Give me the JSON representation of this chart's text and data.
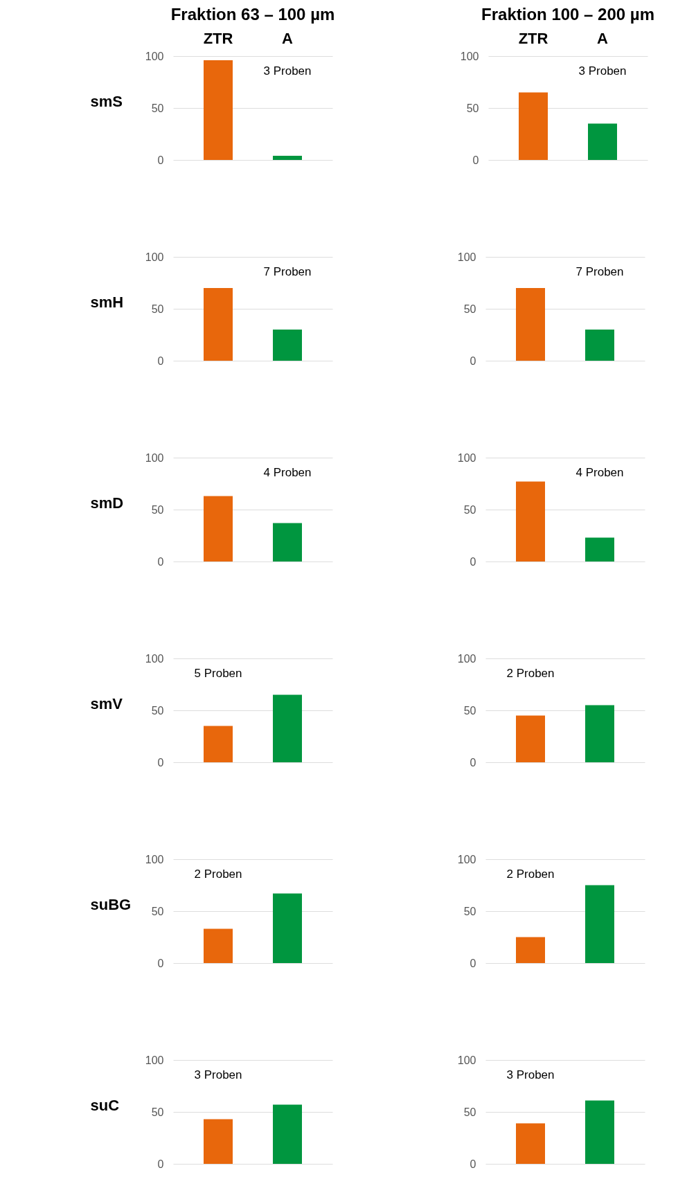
{
  "chart_data": [
    {
      "type": "bar",
      "title": "Fraktion 63 – 100 µm",
      "ylabel": "smS",
      "categories": [
        "ZTR",
        "A"
      ],
      "values": [
        96,
        4
      ],
      "colors": [
        "#e8670c",
        "#00963f"
      ],
      "ylim": [
        0,
        100
      ],
      "yticks": [
        0,
        50,
        100
      ],
      "grid": "y",
      "annotations": [
        "3 Proben"
      ]
    },
    {
      "type": "bar",
      "title": "Fraktion 100 – 200 µm",
      "categories": [
        "ZTR",
        "A"
      ],
      "values": [
        65,
        35
      ],
      "colors": [
        "#e8670c",
        "#00963f"
      ],
      "ylim": [
        0,
        100
      ],
      "yticks": [
        0,
        50,
        100
      ],
      "grid": "y",
      "annotations": [
        "3 Proben"
      ]
    },
    {
      "type": "bar",
      "ylabel": "smH",
      "categories": [
        null,
        null
      ],
      "values": [
        70,
        30
      ],
      "colors": [
        "#e8670c",
        "#00963f"
      ],
      "ylim": [
        0,
        100
      ],
      "yticks": [
        0,
        50,
        100
      ],
      "grid": "y",
      "annotations": [
        "7 Proben"
      ]
    },
    {
      "type": "bar",
      "categories": [
        null,
        null
      ],
      "values": [
        70,
        30
      ],
      "colors": [
        "#e8670c",
        "#00963f"
      ],
      "ylim": [
        0,
        100
      ],
      "yticks": [
        0,
        50,
        100
      ],
      "grid": "y",
      "annotations": [
        "7 Proben"
      ]
    },
    {
      "type": "bar",
      "ylabel": "smD",
      "categories": [
        null,
        null
      ],
      "values": [
        63,
        37
      ],
      "colors": [
        "#e8670c",
        "#00963f"
      ],
      "ylim": [
        0,
        100
      ],
      "yticks": [
        0,
        50,
        100
      ],
      "grid": "y",
      "annotations": [
        "4 Proben"
      ]
    },
    {
      "type": "bar",
      "categories": [
        null,
        null
      ],
      "values": [
        77,
        23
      ],
      "colors": [
        "#e8670c",
        "#00963f"
      ],
      "ylim": [
        0,
        100
      ],
      "yticks": [
        0,
        50,
        100
      ],
      "grid": "y",
      "annotations": [
        "4 Proben"
      ]
    },
    {
      "type": "bar",
      "ylabel": "smV",
      "categories": [
        null,
        null
      ],
      "values": [
        35,
        65
      ],
      "colors": [
        "#e8670c",
        "#00963f"
      ],
      "ylim": [
        0,
        100
      ],
      "yticks": [
        0,
        50,
        100
      ],
      "grid": "y",
      "annotations": [
        "5 Proben"
      ]
    },
    {
      "type": "bar",
      "categories": [
        null,
        null
      ],
      "values": [
        45,
        55
      ],
      "colors": [
        "#e8670c",
        "#00963f"
      ],
      "ylim": [
        0,
        100
      ],
      "yticks": [
        0,
        50,
        100
      ],
      "grid": "y",
      "annotations": [
        "2 Proben"
      ]
    },
    {
      "type": "bar",
      "ylabel": "suBG",
      "categories": [
        null,
        null
      ],
      "values": [
        33,
        67
      ],
      "colors": [
        "#e8670c",
        "#00963f"
      ],
      "ylim": [
        0,
        100
      ],
      "yticks": [
        0,
        50,
        100
      ],
      "grid": "y",
      "annotations": [
        "2 Proben"
      ]
    },
    {
      "type": "bar",
      "categories": [
        null,
        null
      ],
      "values": [
        25,
        75
      ],
      "colors": [
        "#e8670c",
        "#00963f"
      ],
      "ylim": [
        0,
        100
      ],
      "yticks": [
        0,
        50,
        100
      ],
      "grid": "y",
      "annotations": [
        "2 Proben"
      ]
    },
    {
      "type": "bar",
      "ylabel": "suC",
      "categories": [
        null,
        null
      ],
      "values": [
        43,
        57
      ],
      "colors": [
        "#e8670c",
        "#00963f"
      ],
      "ylim": [
        0,
        100
      ],
      "yticks": [
        0,
        50,
        100
      ],
      "grid": "y",
      "annotations": [
        "3 Proben"
      ]
    },
    {
      "type": "bar",
      "categories": [
        null,
        null
      ],
      "values": [
        39,
        61
      ],
      "colors": [
        "#e8670c",
        "#00963f"
      ],
      "ylim": [
        0,
        100
      ],
      "yticks": [
        0,
        50,
        100
      ],
      "grid": "y",
      "annotations": [
        "3 Proben"
      ]
    }
  ]
}
